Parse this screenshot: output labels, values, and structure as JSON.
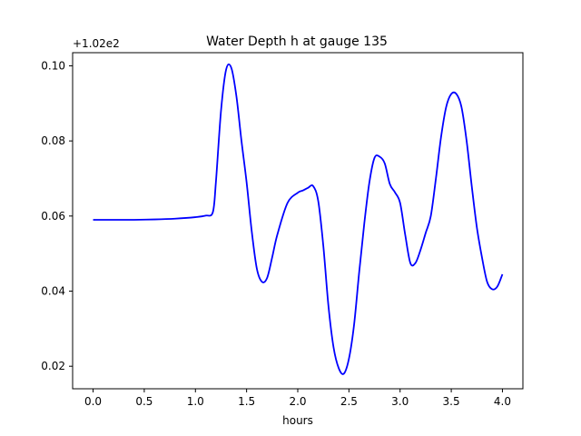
{
  "chart_data": {
    "type": "line",
    "title": "Water Depth h at gauge 135",
    "xlabel": "hours",
    "ylabel": "",
    "y_offset_label": "+1.02e2",
    "xlim": [
      -0.2,
      4.2
    ],
    "ylim": [
      0.014,
      0.1035
    ],
    "xticks": [
      0.0,
      0.5,
      1.0,
      1.5,
      2.0,
      2.5,
      3.0,
      3.5,
      4.0
    ],
    "xtick_labels": [
      "0.0",
      "0.5",
      "1.0",
      "1.5",
      "2.0",
      "2.5",
      "3.0",
      "3.5",
      "4.0"
    ],
    "yticks": [
      0.02,
      0.04,
      0.06,
      0.08,
      0.1
    ],
    "ytick_labels": [
      "0.02",
      "0.04",
      "0.06",
      "0.08",
      "0.10"
    ],
    "grid": false,
    "series": [
      {
        "color": "#0000ff",
        "x": [
          0.0,
          0.2,
          0.4,
          0.6,
          0.8,
          1.0,
          1.1,
          1.17,
          1.2,
          1.25,
          1.3,
          1.35,
          1.4,
          1.45,
          1.5,
          1.55,
          1.6,
          1.65,
          1.7,
          1.75,
          1.8,
          1.9,
          2.0,
          2.05,
          2.1,
          2.15,
          2.2,
          2.25,
          2.3,
          2.35,
          2.4,
          2.45,
          2.5,
          2.55,
          2.6,
          2.65,
          2.7,
          2.75,
          2.8,
          2.85,
          2.9,
          2.95,
          3.0,
          3.05,
          3.1,
          3.15,
          3.2,
          3.25,
          3.3,
          3.35,
          3.4,
          3.45,
          3.5,
          3.55,
          3.6,
          3.65,
          3.7,
          3.75,
          3.8,
          3.85,
          3.9,
          3.95,
          4.0
        ],
        "y": [
          0.059,
          0.059,
          0.059,
          0.0591,
          0.0593,
          0.0597,
          0.0601,
          0.061,
          0.069,
          0.088,
          0.099,
          0.0995,
          0.092,
          0.08,
          0.069,
          0.056,
          0.046,
          0.0425,
          0.0435,
          0.049,
          0.055,
          0.0635,
          0.0662,
          0.0668,
          0.0675,
          0.068,
          0.064,
          0.052,
          0.036,
          0.025,
          0.0195,
          0.018,
          0.022,
          0.031,
          0.045,
          0.058,
          0.069,
          0.0755,
          0.0758,
          0.074,
          0.0685,
          0.0663,
          0.0635,
          0.055,
          0.0475,
          0.0475,
          0.051,
          0.0555,
          0.06,
          0.07,
          0.081,
          0.089,
          0.0925,
          0.0925,
          0.089,
          0.08,
          0.068,
          0.057,
          0.049,
          0.0425,
          0.0405,
          0.0412,
          0.0445
        ]
      }
    ]
  }
}
